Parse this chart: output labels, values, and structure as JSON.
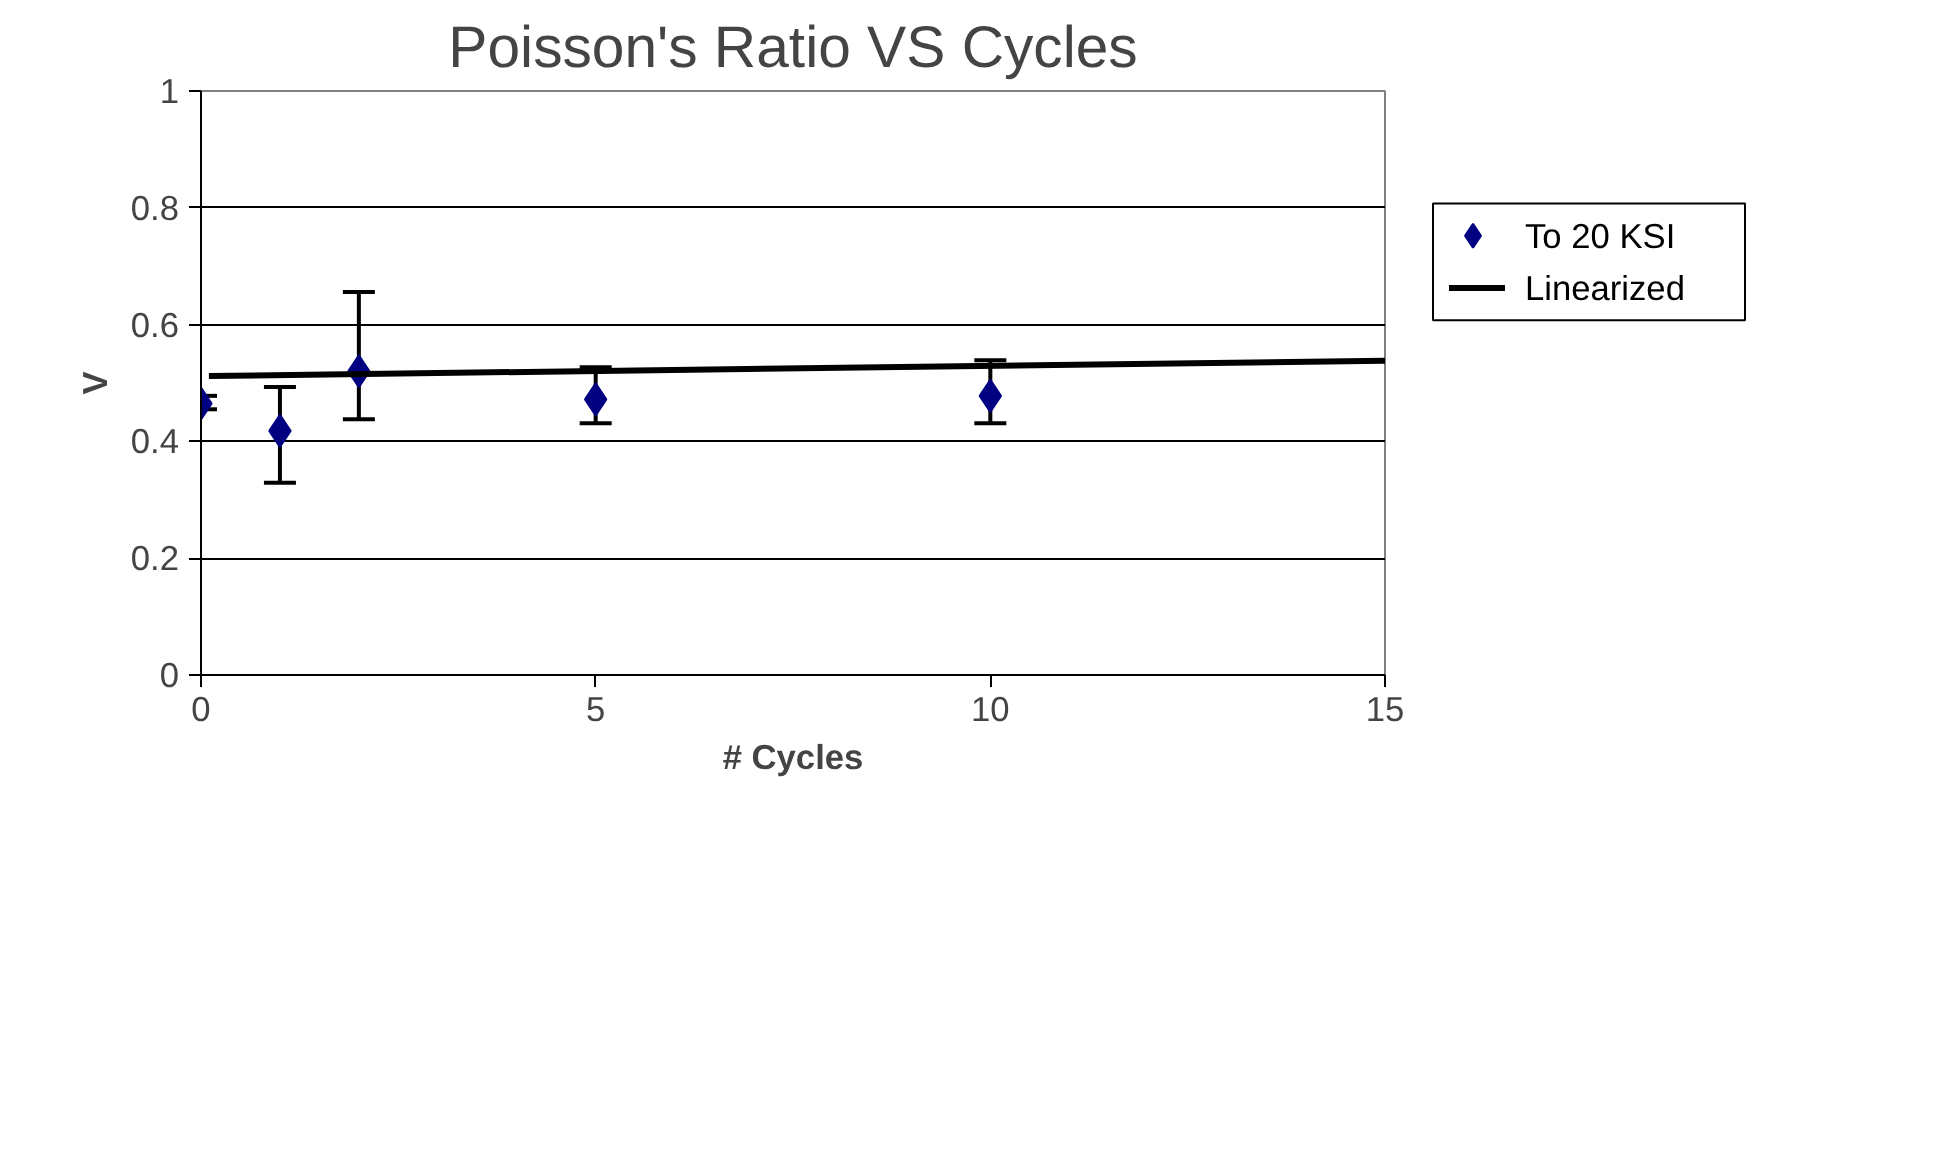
{
  "chart_data": {
    "type": "scatter",
    "title": "Poisson's Ratio VS Cycles",
    "xlabel": "# Cycles",
    "ylabel": "V",
    "xlim": [
      0,
      15
    ],
    "xticks": [
      0,
      5,
      10,
      15
    ],
    "ylim": [
      0,
      1
    ],
    "yticks": [
      0,
      0.2,
      0.4,
      0.6,
      0.8,
      1
    ],
    "grid": "y",
    "legend": "right",
    "series": [
      {
        "name": "To 20 KSI",
        "marker": "diamond",
        "color": "#000080",
        "x": [
          0,
          1,
          2,
          5,
          10
        ],
        "values": [
          0.465,
          0.418,
          0.52,
          0.472,
          0.478
        ],
        "errors": [
          [
            0.455,
            0.478
          ],
          [
            0.329,
            0.493
          ],
          [
            0.438,
            0.656
          ],
          [
            0.431,
            0.527
          ],
          [
            0.431,
            0.539
          ]
        ]
      },
      {
        "name": "Linearized",
        "type": "line",
        "line_style": "solid",
        "color": "#000000",
        "x": [
          0.1,
          15
        ],
        "values": [
          0.512,
          0.538
        ]
      }
    ]
  }
}
